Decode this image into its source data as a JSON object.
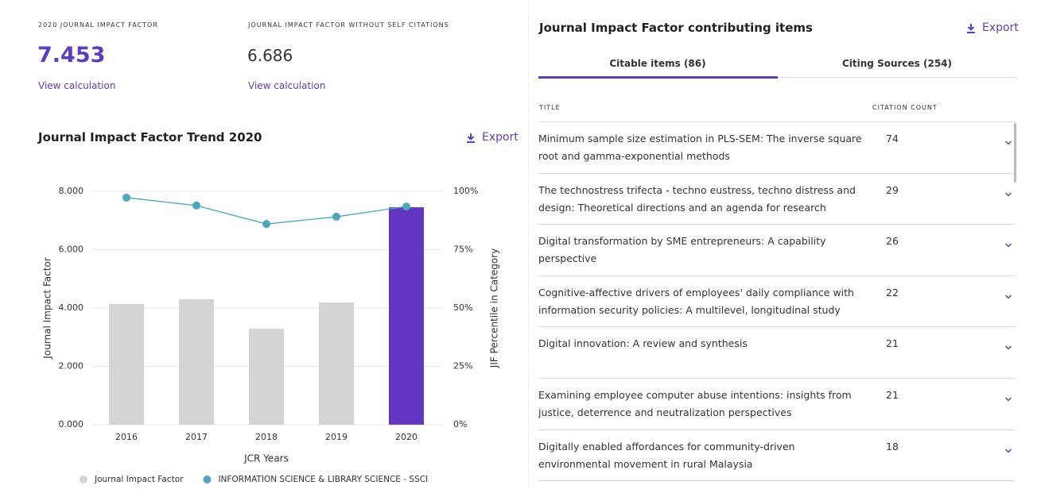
{
  "metrics": [
    {
      "label": "2020 JOURNAL IMPACT FACTOR",
      "value": "7.453",
      "link": "View calculation"
    },
    {
      "label": "JOURNAL IMPACT FACTOR WITHOUT SELF CITATIONS",
      "value": "6.686",
      "link": "View calculation"
    }
  ],
  "chart_section": {
    "title": "Journal Impact Factor Trend 2020",
    "export": "Export"
  },
  "chart_data": {
    "type": "bar",
    "categories": [
      "2016",
      "2017",
      "2018",
      "2019",
      "2020"
    ],
    "series": [
      {
        "name": "Journal Impact Factor",
        "type": "bar",
        "color": "#d4d4d4",
        "colors": [
          "#d4d4d4",
          "#d4d4d4",
          "#d4d4d4",
          "#d4d4d4",
          "#6136c1"
        ],
        "values": [
          4.14,
          4.3,
          3.29,
          4.19,
          7.453
        ]
      },
      {
        "name": "INFORMATION SCIENCE & LIBRARY SCIENCE - SSCI",
        "type": "line",
        "axis": "y2",
        "color": "#4ba8b9",
        "values": [
          97.3,
          93.9,
          86,
          89.1,
          93.5
        ]
      }
    ],
    "xlabel": "JCR Years",
    "ylabel": "Journal Impact Factor",
    "y2label": "JIF Percentile in Category",
    "ylim": [
      0,
      8
    ],
    "yticks": [
      {
        "value": 0,
        "label": "0.000"
      },
      {
        "value": 2,
        "label": "2.000"
      },
      {
        "value": 4,
        "label": "4.000"
      },
      {
        "value": 6,
        "label": "6.000"
      },
      {
        "value": 8,
        "label": "8.000"
      }
    ],
    "y2lim": [
      0,
      100
    ],
    "y2ticks": [
      {
        "value": 0,
        "label": "0%"
      },
      {
        "value": 25,
        "label": "25%"
      },
      {
        "value": 50,
        "label": "50%"
      },
      {
        "value": 75,
        "label": "75%"
      },
      {
        "value": 100,
        "label": "100%"
      }
    ],
    "grid": true,
    "legend": "bottom"
  },
  "items": {
    "title": "Journal Impact Factor contributing items",
    "export": "Export",
    "tabs": [
      "Citable items (86)",
      "Citing Sources (254)"
    ],
    "columns": [
      "TITLE",
      "CITATION COUNT"
    ],
    "rows": [
      {
        "title": "Minimum sample size estimation in PLS-SEM: The inverse square root and gamma-exponential methods",
        "count": "74"
      },
      {
        "title": "The technostress trifecta - techno eustress, techno distress and design: Theoretical directions and an agenda for research",
        "count": "29"
      },
      {
        "title": "Digital transformation by SME entrepreneurs: A capability perspective",
        "count": "26"
      },
      {
        "title": "Cognitive-affective drivers of employees' daily compliance with information security policies: A multilevel, longitudinal study",
        "count": "22"
      },
      {
        "title": "Digital innovation: A review and synthesis",
        "count": "21"
      },
      {
        "title": "Examining employee computer abuse intentions: insights from justice, deterrence and neutralization perspectives",
        "count": "21"
      },
      {
        "title": "Digitally enabled affordances for community-driven environmental movement in rural Malaysia",
        "count": "18"
      }
    ]
  }
}
